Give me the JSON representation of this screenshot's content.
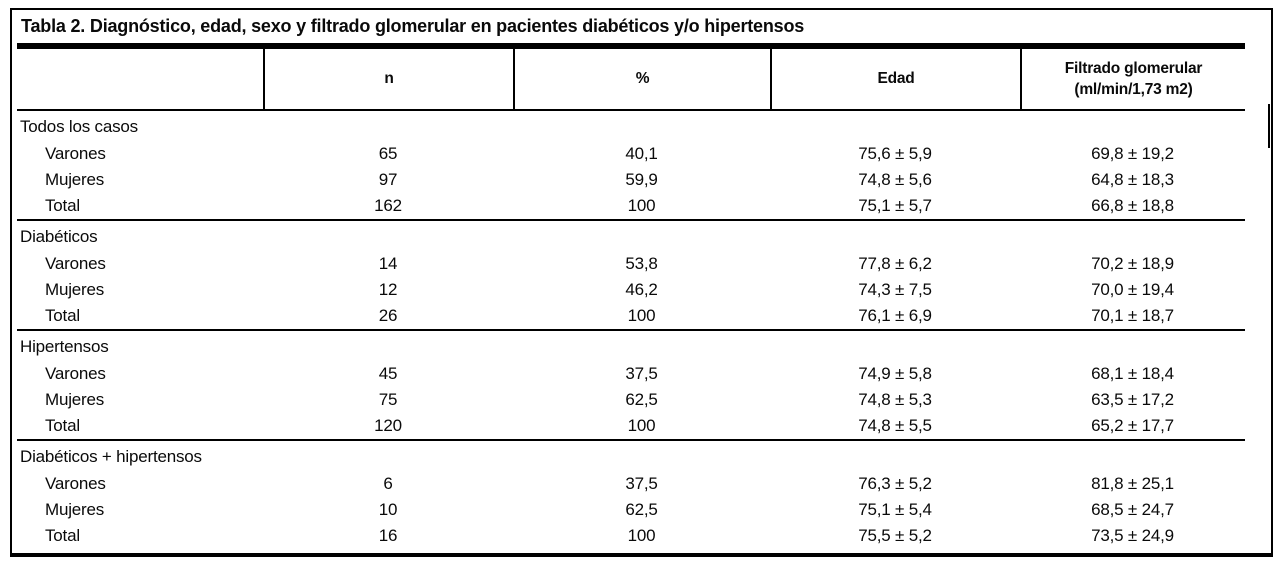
{
  "page": {
    "background_color": "#ffffff",
    "text_color": "#0a0a0a",
    "rule_color": "#000000"
  },
  "table": {
    "title": "Tabla 2. Diagnóstico, edad, sexo y filtrado glomerular en pacientes diabéticos y/o hipertensos",
    "columns": {
      "diagnosis": "",
      "n": "n",
      "pct": "%",
      "edad": "Edad",
      "fg_line1": "Filtrado glomerular",
      "fg_line2": "(ml/min/1,73 m2)"
    },
    "sections": [
      {
        "label": "Todos los casos",
        "rows": [
          {
            "label": "Varones",
            "n": "65",
            "pct": "40,1",
            "edad": "75,6 ± 5,9",
            "fg": "69,8 ± 19,2"
          },
          {
            "label": "Mujeres",
            "n": "97",
            "pct": "59,9",
            "edad": "74,8 ± 5,6",
            "fg": "64,8 ± 18,3"
          },
          {
            "label": "Total",
            "n": "162",
            "pct": "100",
            "edad": "75,1 ± 5,7",
            "fg": "66,8 ± 18,8"
          }
        ]
      },
      {
        "label": "Diabéticos",
        "rows": [
          {
            "label": "Varones",
            "n": "14",
            "pct": "53,8",
            "edad": "77,8 ± 6,2",
            "fg": "70,2 ± 18,9"
          },
          {
            "label": "Mujeres",
            "n": "12",
            "pct": "46,2",
            "edad": "74,3 ± 7,5",
            "fg": "70,0 ± 19,4"
          },
          {
            "label": "Total",
            "n": "26",
            "pct": "100",
            "edad": "76,1 ± 6,9",
            "fg": "70,1 ± 18,7"
          }
        ]
      },
      {
        "label": "Hipertensos",
        "rows": [
          {
            "label": "Varones",
            "n": "45",
            "pct": "37,5",
            "edad": "74,9 ± 5,8",
            "fg": "68,1 ± 18,4"
          },
          {
            "label": "Mujeres",
            "n": "75",
            "pct": "62,5",
            "edad": "74,8 ± 5,3",
            "fg": "63,5 ± 17,2"
          },
          {
            "label": "Total",
            "n": "120",
            "pct": "100",
            "edad": "74,8 ± 5,5",
            "fg": "65,2 ± 17,7"
          }
        ]
      },
      {
        "label": "Diabéticos + hipertensos",
        "rows": [
          {
            "label": "Varones",
            "n": "6",
            "pct": "37,5",
            "edad": "76,3 ± 5,2",
            "fg": "81,8 ± 25,1"
          },
          {
            "label": "Mujeres",
            "n": "10",
            "pct": "62,5",
            "edad": "75,1 ± 5,4",
            "fg": "68,5 ± 24,7"
          },
          {
            "label": "Total",
            "n": "16",
            "pct": "100",
            "edad": "75,5 ± 5,2",
            "fg": "73,5 ± 24,9"
          }
        ]
      }
    ]
  }
}
